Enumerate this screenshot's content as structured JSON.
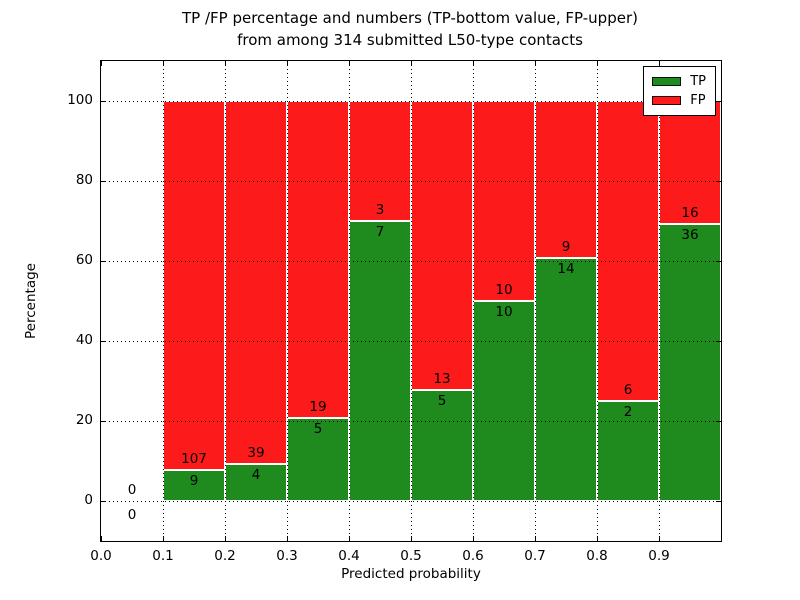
{
  "chart_data": {
    "type": "bar",
    "stacked": true,
    "normalization": "each bin stacked to 100%; labels show raw TP/FP counts",
    "title_lines": [
      "TP /FP percentage and numbers (TP-bottom value, FP-upper)",
      "from among 314 submitted L50-type contacts"
    ],
    "xlabel": "Predicted probability",
    "ylabel": "Percentage",
    "xlim": [
      0.0,
      1.0
    ],
    "ylim": [
      -10,
      110
    ],
    "grid": "dotted black, drawn over bars",
    "xticks": [
      0.0,
      0.1,
      0.2,
      0.3,
      0.4,
      0.5,
      0.6,
      0.7,
      0.8,
      0.9
    ],
    "xtick_labels": [
      "0.0",
      "0.1",
      "0.2",
      "0.3",
      "0.4",
      "0.5",
      "0.6",
      "0.7",
      "0.8",
      "0.9"
    ],
    "yticks": [
      0,
      20,
      40,
      60,
      80,
      100
    ],
    "ytick_labels": [
      "0",
      "20",
      "40",
      "60",
      "80",
      "100"
    ],
    "total_contacts": 314,
    "series_names": [
      "TP",
      "FP"
    ],
    "bins": [
      {
        "x0": 0.0,
        "x1": 0.1,
        "tp": 0,
        "fp": 0
      },
      {
        "x0": 0.1,
        "x1": 0.2,
        "tp": 9,
        "fp": 107
      },
      {
        "x0": 0.2,
        "x1": 0.3,
        "tp": 4,
        "fp": 39
      },
      {
        "x0": 0.3,
        "x1": 0.4,
        "tp": 5,
        "fp": 19
      },
      {
        "x0": 0.4,
        "x1": 0.5,
        "tp": 7,
        "fp": 3
      },
      {
        "x0": 0.5,
        "x1": 0.6,
        "tp": 5,
        "fp": 13
      },
      {
        "x0": 0.6,
        "x1": 0.7,
        "tp": 10,
        "fp": 10
      },
      {
        "x0": 0.7,
        "x1": 0.8,
        "tp": 14,
        "fp": 9
      },
      {
        "x0": 0.8,
        "x1": 0.9,
        "tp": 2,
        "fp": 6
      },
      {
        "x0": 0.9,
        "x1": 1.0,
        "tp": 36,
        "fp": 16
      }
    ],
    "legend": {
      "position": "upper right",
      "entries": [
        {
          "label": "TP",
          "color": "#1f8b1f"
        },
        {
          "label": "FP",
          "color": "#fc1a1a"
        }
      ]
    },
    "colors": {
      "tp": "#1f8b1f",
      "fp": "#fc1a1a",
      "grid": "#000000",
      "bar_edge": "#ffffff"
    }
  }
}
